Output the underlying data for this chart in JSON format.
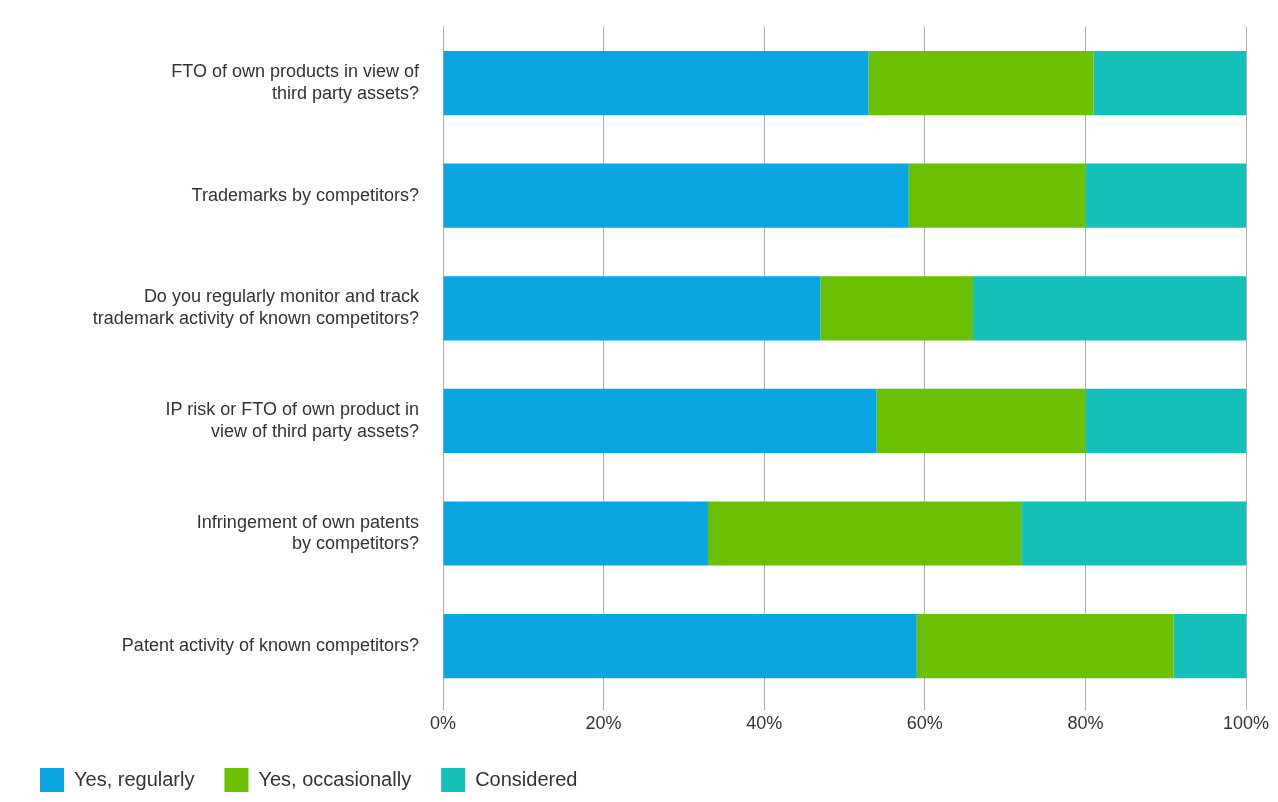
{
  "chart_data": {
    "type": "bar",
    "orientation": "horizontal",
    "stacked": true,
    "categories": [
      "FTO of own products in view of\nthird party assets?",
      "Trademarks by competitors?",
      "Do you regularly monitor and track\ntrademark activity of known competitors?",
      "IP risk or FTO of own product in\nview of third party assets?",
      "Infringement of own patents\nby competitors?",
      "Patent activity of known competitors?"
    ],
    "series": [
      {
        "name": "Yes, regularly",
        "color": "#0aa6e2",
        "values": [
          53,
          58,
          47,
          54,
          33,
          59
        ]
      },
      {
        "name": "Yes, occasionally",
        "color": "#6cc004",
        "values": [
          28,
          22,
          19,
          26,
          39,
          32
        ]
      },
      {
        "name": "Considered",
        "color": "#14c0ba",
        "values": [
          19,
          20,
          34,
          20,
          28,
          9
        ]
      }
    ],
    "xlim": [
      0,
      100
    ],
    "xticks": [
      {
        "value": 0,
        "label": "0%"
      },
      {
        "value": 20,
        "label": "20%"
      },
      {
        "value": 40,
        "label": "40%"
      },
      {
        "value": 60,
        "label": "60%"
      },
      {
        "value": 80,
        "label": "80%"
      },
      {
        "value": 100,
        "label": "100%"
      }
    ],
    "grid": "x",
    "legend": "bottom left"
  }
}
